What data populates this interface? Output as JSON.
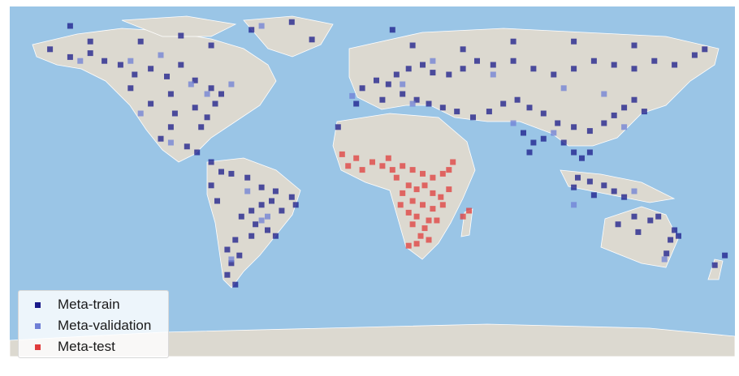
{
  "colors": {
    "ocean": "#9ac5e6",
    "land": "#dcd9d0",
    "border": "#ffffff",
    "meta_train": "#1a1a8a",
    "meta_validation": "#6f7fd6",
    "meta_test": "#e03c3c"
  },
  "legend": {
    "placement": "bottom-left",
    "items": [
      {
        "label": "Meta-train",
        "color": "#1a1a8a"
      },
      {
        "label": "Meta-validation",
        "color": "#6f7fd6"
      },
      {
        "label": "Meta-test",
        "color": "#e03c3c"
      }
    ]
  },
  "chart_data": {
    "type": "scatter",
    "projection": "plate-carree",
    "xlim": [
      -180,
      180
    ],
    "ylim": [
      -90,
      90
    ],
    "series": [
      {
        "name": "Meta-train",
        "points": [
          [
            -160,
            68
          ],
          [
            -150,
            64
          ],
          [
            -140,
            66
          ],
          [
            -133,
            62
          ],
          [
            -125,
            60
          ],
          [
            -118,
            55
          ],
          [
            -110,
            58
          ],
          [
            -102,
            54
          ],
          [
            -95,
            60
          ],
          [
            -88,
            52
          ],
          [
            -80,
            48
          ],
          [
            -75,
            45
          ],
          [
            -100,
            45
          ],
          [
            -120,
            48
          ],
          [
            -110,
            40
          ],
          [
            -98,
            35
          ],
          [
            -88,
            38
          ],
          [
            -82,
            33
          ],
          [
            -78,
            40
          ],
          [
            -85,
            28
          ],
          [
            -100,
            28
          ],
          [
            -105,
            22
          ],
          [
            -92,
            18
          ],
          [
            -87,
            15
          ],
          [
            -80,
            10
          ],
          [
            -75,
            5
          ],
          [
            -70,
            4
          ],
          [
            -62,
            2
          ],
          [
            -55,
            -3
          ],
          [
            -48,
            -5
          ],
          [
            -40,
            -8
          ],
          [
            -38,
            -12
          ],
          [
            -45,
            -15
          ],
          [
            -50,
            -10
          ],
          [
            -55,
            -12
          ],
          [
            -60,
            -15
          ],
          [
            -65,
            -18
          ],
          [
            -58,
            -22
          ],
          [
            -52,
            -25
          ],
          [
            -48,
            -28
          ],
          [
            -60,
            -28
          ],
          [
            -68,
            -30
          ],
          [
            -72,
            -35
          ],
          [
            -66,
            -38
          ],
          [
            -70,
            -42
          ],
          [
            -72,
            -48
          ],
          [
            -68,
            -53
          ],
          [
            -80,
            -2
          ],
          [
            -77,
            -10
          ],
          [
            -150,
            80
          ],
          [
            -140,
            72
          ],
          [
            -115,
            72
          ],
          [
            -95,
            75
          ],
          [
            -80,
            70
          ],
          [
            -60,
            78
          ],
          [
            -40,
            82
          ],
          [
            -30,
            73
          ],
          [
            -5,
            48
          ],
          [
            2,
            52
          ],
          [
            8,
            50
          ],
          [
            12,
            55
          ],
          [
            18,
            58
          ],
          [
            25,
            60
          ],
          [
            30,
            56
          ],
          [
            38,
            55
          ],
          [
            45,
            58
          ],
          [
            52,
            62
          ],
          [
            60,
            60
          ],
          [
            70,
            62
          ],
          [
            80,
            58
          ],
          [
            90,
            55
          ],
          [
            100,
            58
          ],
          [
            110,
            62
          ],
          [
            120,
            60
          ],
          [
            130,
            58
          ],
          [
            140,
            62
          ],
          [
            150,
            60
          ],
          [
            160,
            65
          ],
          [
            -8,
            40
          ],
          [
            5,
            42
          ],
          [
            15,
            45
          ],
          [
            22,
            42
          ],
          [
            28,
            40
          ],
          [
            35,
            38
          ],
          [
            42,
            36
          ],
          [
            50,
            33
          ],
          [
            58,
            36
          ],
          [
            65,
            40
          ],
          [
            72,
            42
          ],
          [
            78,
            38
          ],
          [
            85,
            35
          ],
          [
            92,
            30
          ],
          [
            100,
            28
          ],
          [
            108,
            26
          ],
          [
            115,
            30
          ],
          [
            120,
            34
          ],
          [
            125,
            38
          ],
          [
            130,
            42
          ],
          [
            135,
            36
          ],
          [
            75,
            25
          ],
          [
            80,
            20
          ],
          [
            78,
            15
          ],
          [
            85,
            22
          ],
          [
            95,
            20
          ],
          [
            100,
            15
          ],
          [
            104,
            12
          ],
          [
            108,
            15
          ],
          [
            102,
            2
          ],
          [
            108,
            0
          ],
          [
            115,
            -2
          ],
          [
            120,
            -5
          ],
          [
            125,
            -8
          ],
          [
            110,
            -7
          ],
          [
            100,
            -3
          ],
          [
            10,
            78
          ],
          [
            20,
            70
          ],
          [
            45,
            68
          ],
          [
            70,
            72
          ],
          [
            100,
            72
          ],
          [
            130,
            70
          ],
          [
            165,
            68
          ],
          [
            -17,
            28
          ],
          [
            150,
            -25
          ],
          [
            148,
            -30
          ],
          [
            146,
            -37
          ],
          [
            152,
            -28
          ],
          [
            138,
            -20
          ],
          [
            130,
            -18
          ],
          [
            122,
            -22
          ],
          [
            132,
            -26
          ],
          [
            142,
            -18
          ],
          [
            175,
            -38
          ],
          [
            170,
            -43
          ]
        ]
      },
      {
        "name": "Meta-validation",
        "points": [
          [
            -145,
            62
          ],
          [
            -120,
            62
          ],
          [
            -105,
            65
          ],
          [
            -90,
            50
          ],
          [
            -70,
            50
          ],
          [
            -115,
            35
          ],
          [
            -82,
            45
          ],
          [
            -55,
            -20
          ],
          [
            -52,
            -18
          ],
          [
            -62,
            -5
          ],
          [
            -100,
            20
          ],
          [
            -55,
            80
          ],
          [
            15,
            50
          ],
          [
            30,
            62
          ],
          [
            60,
            55
          ],
          [
            95,
            48
          ],
          [
            115,
            45
          ],
          [
            125,
            28
          ],
          [
            90,
            25
          ],
          [
            70,
            30
          ],
          [
            20,
            40
          ],
          [
            -10,
            44
          ],
          [
            130,
            -5
          ],
          [
            145,
            -40
          ],
          [
            100,
            -12
          ],
          [
            -70,
            -40
          ]
        ]
      },
      {
        "name": "Meta-test",
        "points": [
          [
            -15,
            14
          ],
          [
            -8,
            12
          ],
          [
            0,
            10
          ],
          [
            5,
            8
          ],
          [
            10,
            6
          ],
          [
            15,
            8
          ],
          [
            20,
            6
          ],
          [
            25,
            4
          ],
          [
            30,
            2
          ],
          [
            35,
            4
          ],
          [
            38,
            6
          ],
          [
            40,
            10
          ],
          [
            12,
            2
          ],
          [
            18,
            -2
          ],
          [
            22,
            -4
          ],
          [
            26,
            -2
          ],
          [
            30,
            -6
          ],
          [
            34,
            -8
          ],
          [
            38,
            -4
          ],
          [
            15,
            -6
          ],
          [
            20,
            -10
          ],
          [
            25,
            -12
          ],
          [
            30,
            -14
          ],
          [
            35,
            -12
          ],
          [
            14,
            -12
          ],
          [
            18,
            -16
          ],
          [
            22,
            -18
          ],
          [
            28,
            -20
          ],
          [
            32,
            -20
          ],
          [
            26,
            -24
          ],
          [
            20,
            -22
          ],
          [
            24,
            -28
          ],
          [
            28,
            -30
          ],
          [
            22,
            -32
          ],
          [
            18,
            -33
          ],
          [
            45,
            -18
          ],
          [
            48,
            -15
          ],
          [
            8,
            12
          ],
          [
            -12,
            8
          ],
          [
            -5,
            6
          ]
        ]
      }
    ]
  }
}
